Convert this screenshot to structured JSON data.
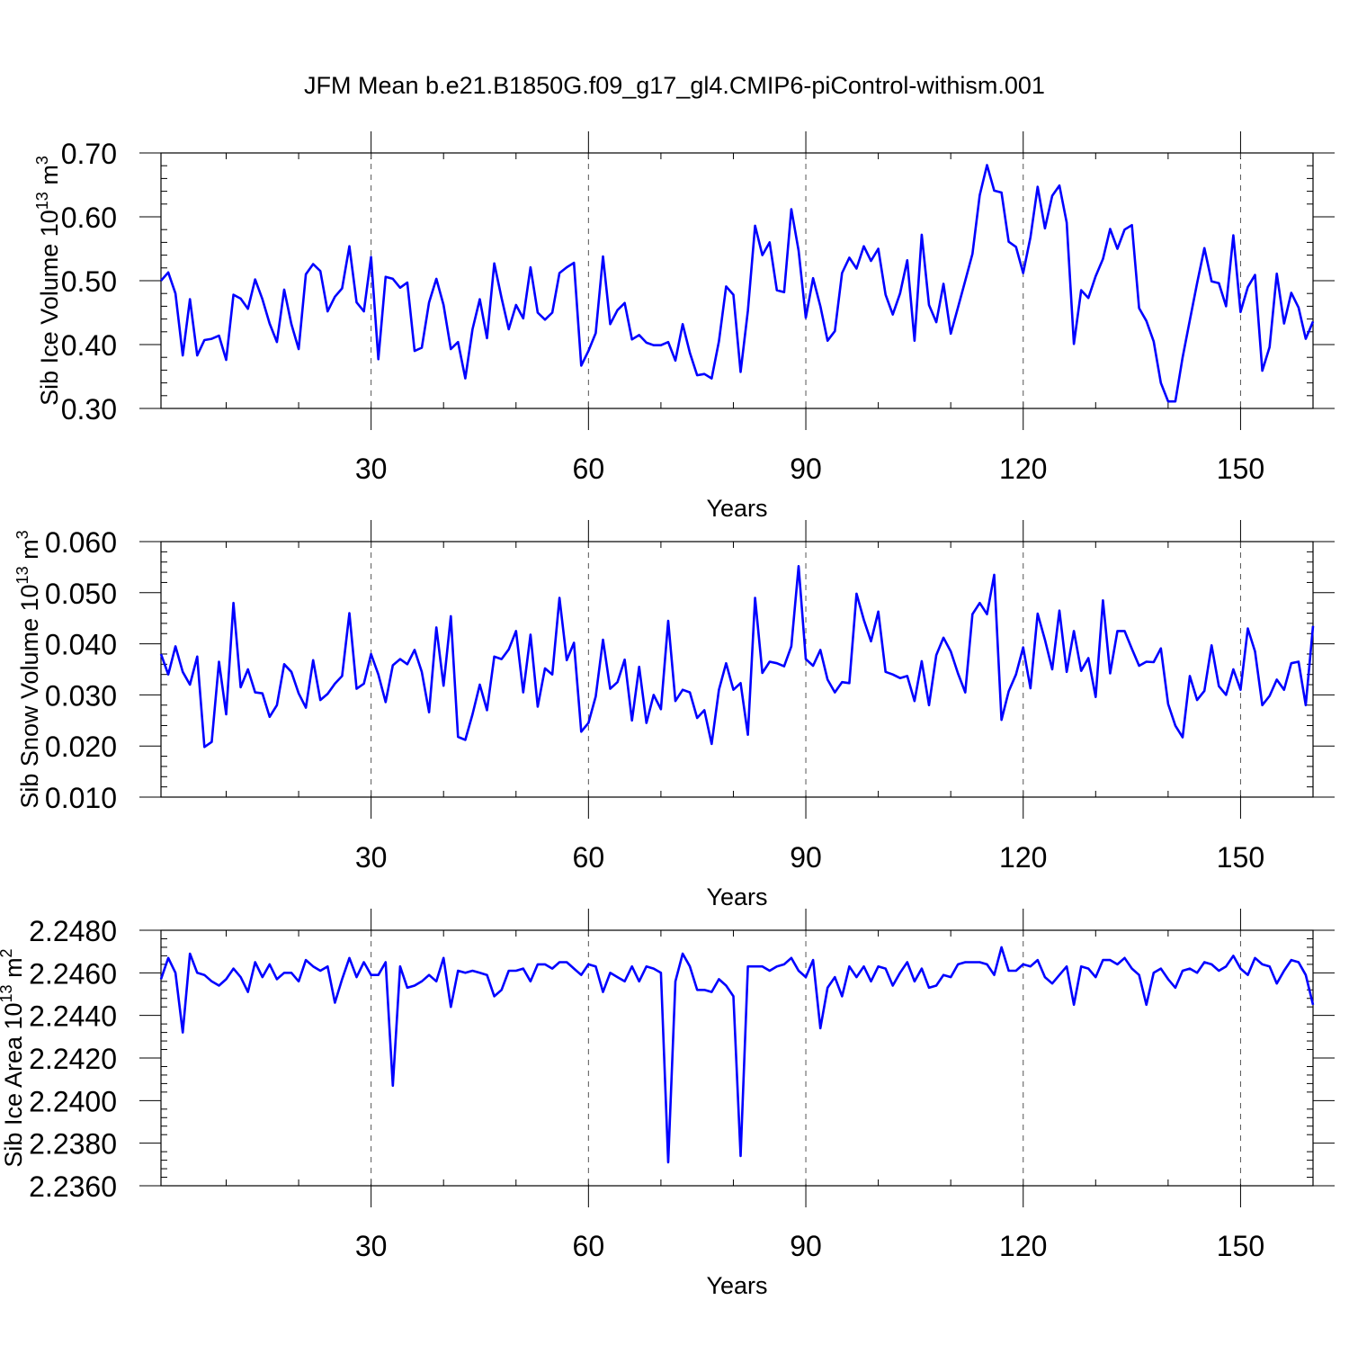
{
  "figure": {
    "title": "JFM Mean b.e21.B1850G.f09_g17_gl4.CMIP6-piControl-withism.001"
  },
  "chart_data": [
    {
      "type": "line",
      "xlabel": "Years",
      "ylabel": "Sib Ice Volume 10",
      "ylabel_sup": "13",
      "ylabel_unit": " m",
      "ylabel_unit_sup": "3",
      "xlim": [
        1,
        160
      ],
      "ylim": [
        0.3,
        0.7
      ],
      "xticks": [
        30,
        60,
        90,
        120,
        150
      ],
      "xtick_labels": [
        "30",
        "60",
        "90",
        "120",
        "150"
      ],
      "yticks": [
        0.3,
        0.4,
        0.5,
        0.6,
        0.7
      ],
      "ytick_labels": [
        "0.30",
        "0.40",
        "0.50",
        "0.60",
        "0.70"
      ],
      "grid": "vertical-dashed",
      "line_color": "#0000ff",
      "series": [
        {
          "x_start": 1,
          "values": [
            0.5,
            0.513,
            0.48,
            0.383,
            0.471,
            0.383,
            0.407,
            0.409,
            0.414,
            0.376,
            0.478,
            0.472,
            0.456,
            0.502,
            0.471,
            0.433,
            0.404,
            0.486,
            0.432,
            0.393,
            0.51,
            0.526,
            0.515,
            0.452,
            0.475,
            0.488,
            0.554,
            0.466,
            0.452,
            0.537,
            0.377,
            0.506,
            0.503,
            0.489,
            0.497,
            0.39,
            0.395,
            0.466,
            0.503,
            0.462,
            0.393,
            0.404,
            0.347,
            0.424,
            0.471,
            0.41,
            0.527,
            0.473,
            0.424,
            0.462,
            0.441,
            0.521,
            0.45,
            0.439,
            0.45,
            0.512,
            0.521,
            0.528,
            0.367,
            0.39,
            0.418,
            0.538,
            0.432,
            0.454,
            0.465,
            0.408,
            0.415,
            0.403,
            0.399,
            0.399,
            0.404,
            0.375,
            0.432,
            0.387,
            0.352,
            0.354,
            0.347,
            0.405,
            0.491,
            0.478,
            0.357,
            0.453,
            0.586,
            0.54,
            0.56,
            0.485,
            0.482,
            0.612,
            0.547,
            0.442,
            0.504,
            0.46,
            0.406,
            0.421,
            0.512,
            0.536,
            0.519,
            0.554,
            0.531,
            0.55,
            0.478,
            0.447,
            0.48,
            0.532,
            0.406,
            0.572,
            0.462,
            0.435,
            0.495,
            0.417,
            0.458,
            0.5,
            0.542,
            0.634,
            0.681,
            0.641,
            0.638,
            0.561,
            0.553,
            0.512,
            0.568,
            0.647,
            0.582,
            0.633,
            0.649,
            0.591,
            0.401,
            0.485,
            0.473,
            0.507,
            0.534,
            0.581,
            0.55,
            0.58,
            0.587,
            0.457,
            0.437,
            0.405,
            0.34,
            0.311,
            0.311,
            0.38,
            0.438,
            0.496,
            0.551,
            0.499,
            0.496,
            0.46,
            0.571,
            0.451,
            0.49,
            0.509,
            0.359,
            0.396,
            0.511,
            0.433,
            0.481,
            0.458,
            0.409,
            0.436
          ]
        }
      ]
    },
    {
      "type": "line",
      "xlabel": "Years",
      "ylabel": "Sib Snow Volume 10",
      "ylabel_sup": "13",
      "ylabel_unit": " m",
      "ylabel_unit_sup": "3",
      "xlim": [
        1,
        160
      ],
      "ylim": [
        0.01,
        0.06
      ],
      "xticks": [
        30,
        60,
        90,
        120,
        150
      ],
      "xtick_labels": [
        "30",
        "60",
        "90",
        "120",
        "150"
      ],
      "yticks": [
        0.01,
        0.02,
        0.03,
        0.04,
        0.05,
        0.06
      ],
      "ytick_labels": [
        "0.010",
        "0.020",
        "0.030",
        "0.040",
        "0.050",
        "0.060"
      ],
      "grid": "vertical-dashed",
      "line_color": "#0000ff",
      "series": [
        {
          "x_start": 1,
          "values": [
            0.038,
            0.034,
            0.0395,
            0.0345,
            0.032,
            0.0375,
            0.0198,
            0.0208,
            0.0365,
            0.0262,
            0.048,
            0.0315,
            0.035,
            0.0305,
            0.0303,
            0.0257,
            0.028,
            0.036,
            0.0345,
            0.0303,
            0.0275,
            0.0368,
            0.029,
            0.0302,
            0.0322,
            0.0337,
            0.046,
            0.0312,
            0.0322,
            0.038,
            0.034,
            0.0286,
            0.0358,
            0.037,
            0.036,
            0.0388,
            0.0345,
            0.0266,
            0.0432,
            0.0318,
            0.0454,
            0.0218,
            0.0212,
            0.0262,
            0.032,
            0.027,
            0.0375,
            0.037,
            0.0389,
            0.0425,
            0.0305,
            0.0418,
            0.0277,
            0.0352,
            0.034,
            0.049,
            0.0368,
            0.0402,
            0.0228,
            0.0245,
            0.0297,
            0.0408,
            0.0312,
            0.0325,
            0.0369,
            0.025,
            0.0355,
            0.0245,
            0.03,
            0.0272,
            0.0445,
            0.0288,
            0.031,
            0.0305,
            0.0255,
            0.027,
            0.0204,
            0.031,
            0.0362,
            0.031,
            0.0323,
            0.0222,
            0.049,
            0.0343,
            0.0365,
            0.0362,
            0.0356,
            0.0395,
            0.0552,
            0.037,
            0.0357,
            0.0388,
            0.033,
            0.0305,
            0.0325,
            0.0323,
            0.0498,
            0.0447,
            0.0405,
            0.0463,
            0.0345,
            0.034,
            0.0333,
            0.0337,
            0.0288,
            0.0366,
            0.028,
            0.0378,
            0.0412,
            0.0385,
            0.0342,
            0.0305,
            0.0458,
            0.048,
            0.0458,
            0.0535,
            0.0251,
            0.0307,
            0.034,
            0.0393,
            0.0313,
            0.0459,
            0.0408,
            0.035,
            0.0465,
            0.0345,
            0.0425,
            0.0347,
            0.0372,
            0.0296,
            0.0485,
            0.0342,
            0.0425,
            0.0425,
            0.039,
            0.0357,
            0.0365,
            0.0364,
            0.0391,
            0.0282,
            0.024,
            0.0217,
            0.0337,
            0.029,
            0.0308,
            0.0397,
            0.0317,
            0.03,
            0.035,
            0.031,
            0.043,
            0.0385,
            0.028,
            0.0298,
            0.033,
            0.031,
            0.0362,
            0.0365,
            0.028,
            0.0435
          ]
        }
      ]
    },
    {
      "type": "line",
      "xlabel": "Years",
      "ylabel": "Sib Ice Area 10",
      "ylabel_sup": "13",
      "ylabel_unit": " m",
      "ylabel_unit_sup": "2",
      "xlim": [
        1,
        160
      ],
      "ylim": [
        2.236,
        2.248
      ],
      "xticks": [
        30,
        60,
        90,
        120,
        150
      ],
      "xtick_labels": [
        "30",
        "60",
        "90",
        "120",
        "150"
      ],
      "yticks": [
        2.236,
        2.238,
        2.24,
        2.242,
        2.244,
        2.246,
        2.248
      ],
      "ytick_labels": [
        "2.2360",
        "2.2380",
        "2.2400",
        "2.2420",
        "2.2440",
        "2.2460",
        "2.2480"
      ],
      "grid": "vertical-dashed",
      "line_color": "#0000ff",
      "series": [
        {
          "x_start": 1,
          "values": [
            2.2457,
            2.2467,
            2.246,
            2.2432,
            2.2469,
            2.246,
            2.2459,
            2.2456,
            2.2454,
            2.2457,
            2.2462,
            2.2458,
            2.2451,
            2.2465,
            2.2458,
            2.2464,
            2.2457,
            2.246,
            2.246,
            2.2456,
            2.2466,
            2.2463,
            2.2461,
            2.2463,
            2.2446,
            2.2457,
            2.2467,
            2.2458,
            2.2465,
            2.2459,
            2.2459,
            2.2465,
            2.2407,
            2.2463,
            2.2453,
            2.2454,
            2.2456,
            2.2459,
            2.2456,
            2.2467,
            2.2444,
            2.2461,
            2.246,
            2.2461,
            2.246,
            2.2459,
            2.2449,
            2.2452,
            2.2461,
            2.2461,
            2.2462,
            2.2456,
            2.2464,
            2.2464,
            2.2462,
            2.2465,
            2.2465,
            2.2462,
            2.2459,
            2.2464,
            2.2463,
            2.2451,
            2.246,
            2.2458,
            2.2456,
            2.2463,
            2.2456,
            2.2463,
            2.2462,
            2.246,
            2.2371,
            2.2456,
            2.2469,
            2.2463,
            2.2452,
            2.2452,
            2.2451,
            2.2457,
            2.2454,
            2.2449,
            2.2374,
            2.2463,
            2.2463,
            2.2463,
            2.2461,
            2.2463,
            2.2464,
            2.2467,
            2.2461,
            2.2458,
            2.2466,
            2.2434,
            2.2453,
            2.2458,
            2.2449,
            2.2463,
            2.2458,
            2.2463,
            2.2456,
            2.2463,
            2.2462,
            2.2454,
            2.246,
            2.2465,
            2.2456,
            2.2462,
            2.2453,
            2.2454,
            2.2459,
            2.2458,
            2.2464,
            2.2465,
            2.2465,
            2.2465,
            2.2464,
            2.2459,
            2.2472,
            2.2461,
            2.2461,
            2.2464,
            2.2463,
            2.2466,
            2.2458,
            2.2455,
            2.2459,
            2.2463,
            2.2445,
            2.2463,
            2.2462,
            2.2458,
            2.2466,
            2.2466,
            2.2464,
            2.2467,
            2.2462,
            2.2459,
            2.2445,
            2.246,
            2.2462,
            2.2457,
            2.2453,
            2.2461,
            2.2462,
            2.246,
            2.2465,
            2.2464,
            2.2461,
            2.2463,
            2.2468,
            2.2462,
            2.2459,
            2.2467,
            2.2464,
            2.2463,
            2.2455,
            2.2461,
            2.2466,
            2.2465,
            2.2459,
            2.2445
          ]
        }
      ]
    }
  ]
}
